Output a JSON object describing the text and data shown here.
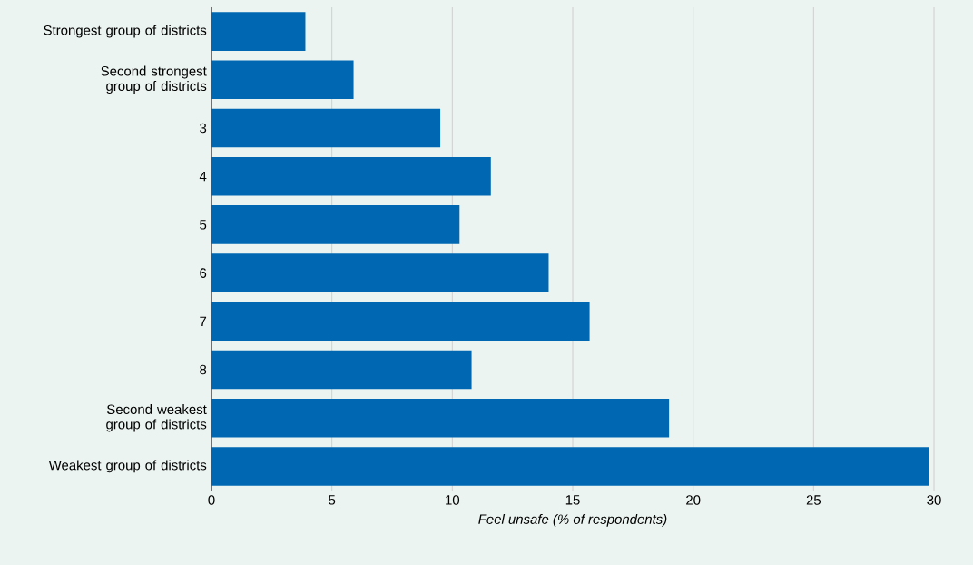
{
  "chart_data": {
    "type": "bar",
    "orientation": "horizontal",
    "xlabel": "Feel unsafe (% of respondents)",
    "categories": [
      "Strongest group of districts",
      "Second strongest group of districts",
      "3",
      "4",
      "5",
      "6",
      "7",
      "8",
      "Second weakest group of districts",
      "Weakest group of districts"
    ],
    "values": [
      3.9,
      5.9,
      9.5,
      11.6,
      10.3,
      14.0,
      15.7,
      10.8,
      19.0,
      29.8
    ],
    "color": "#0068b3",
    "xlim": [
      0,
      30
    ],
    "xticks": [
      0,
      5,
      10,
      15,
      20,
      25,
      30
    ],
    "grid": "x"
  }
}
